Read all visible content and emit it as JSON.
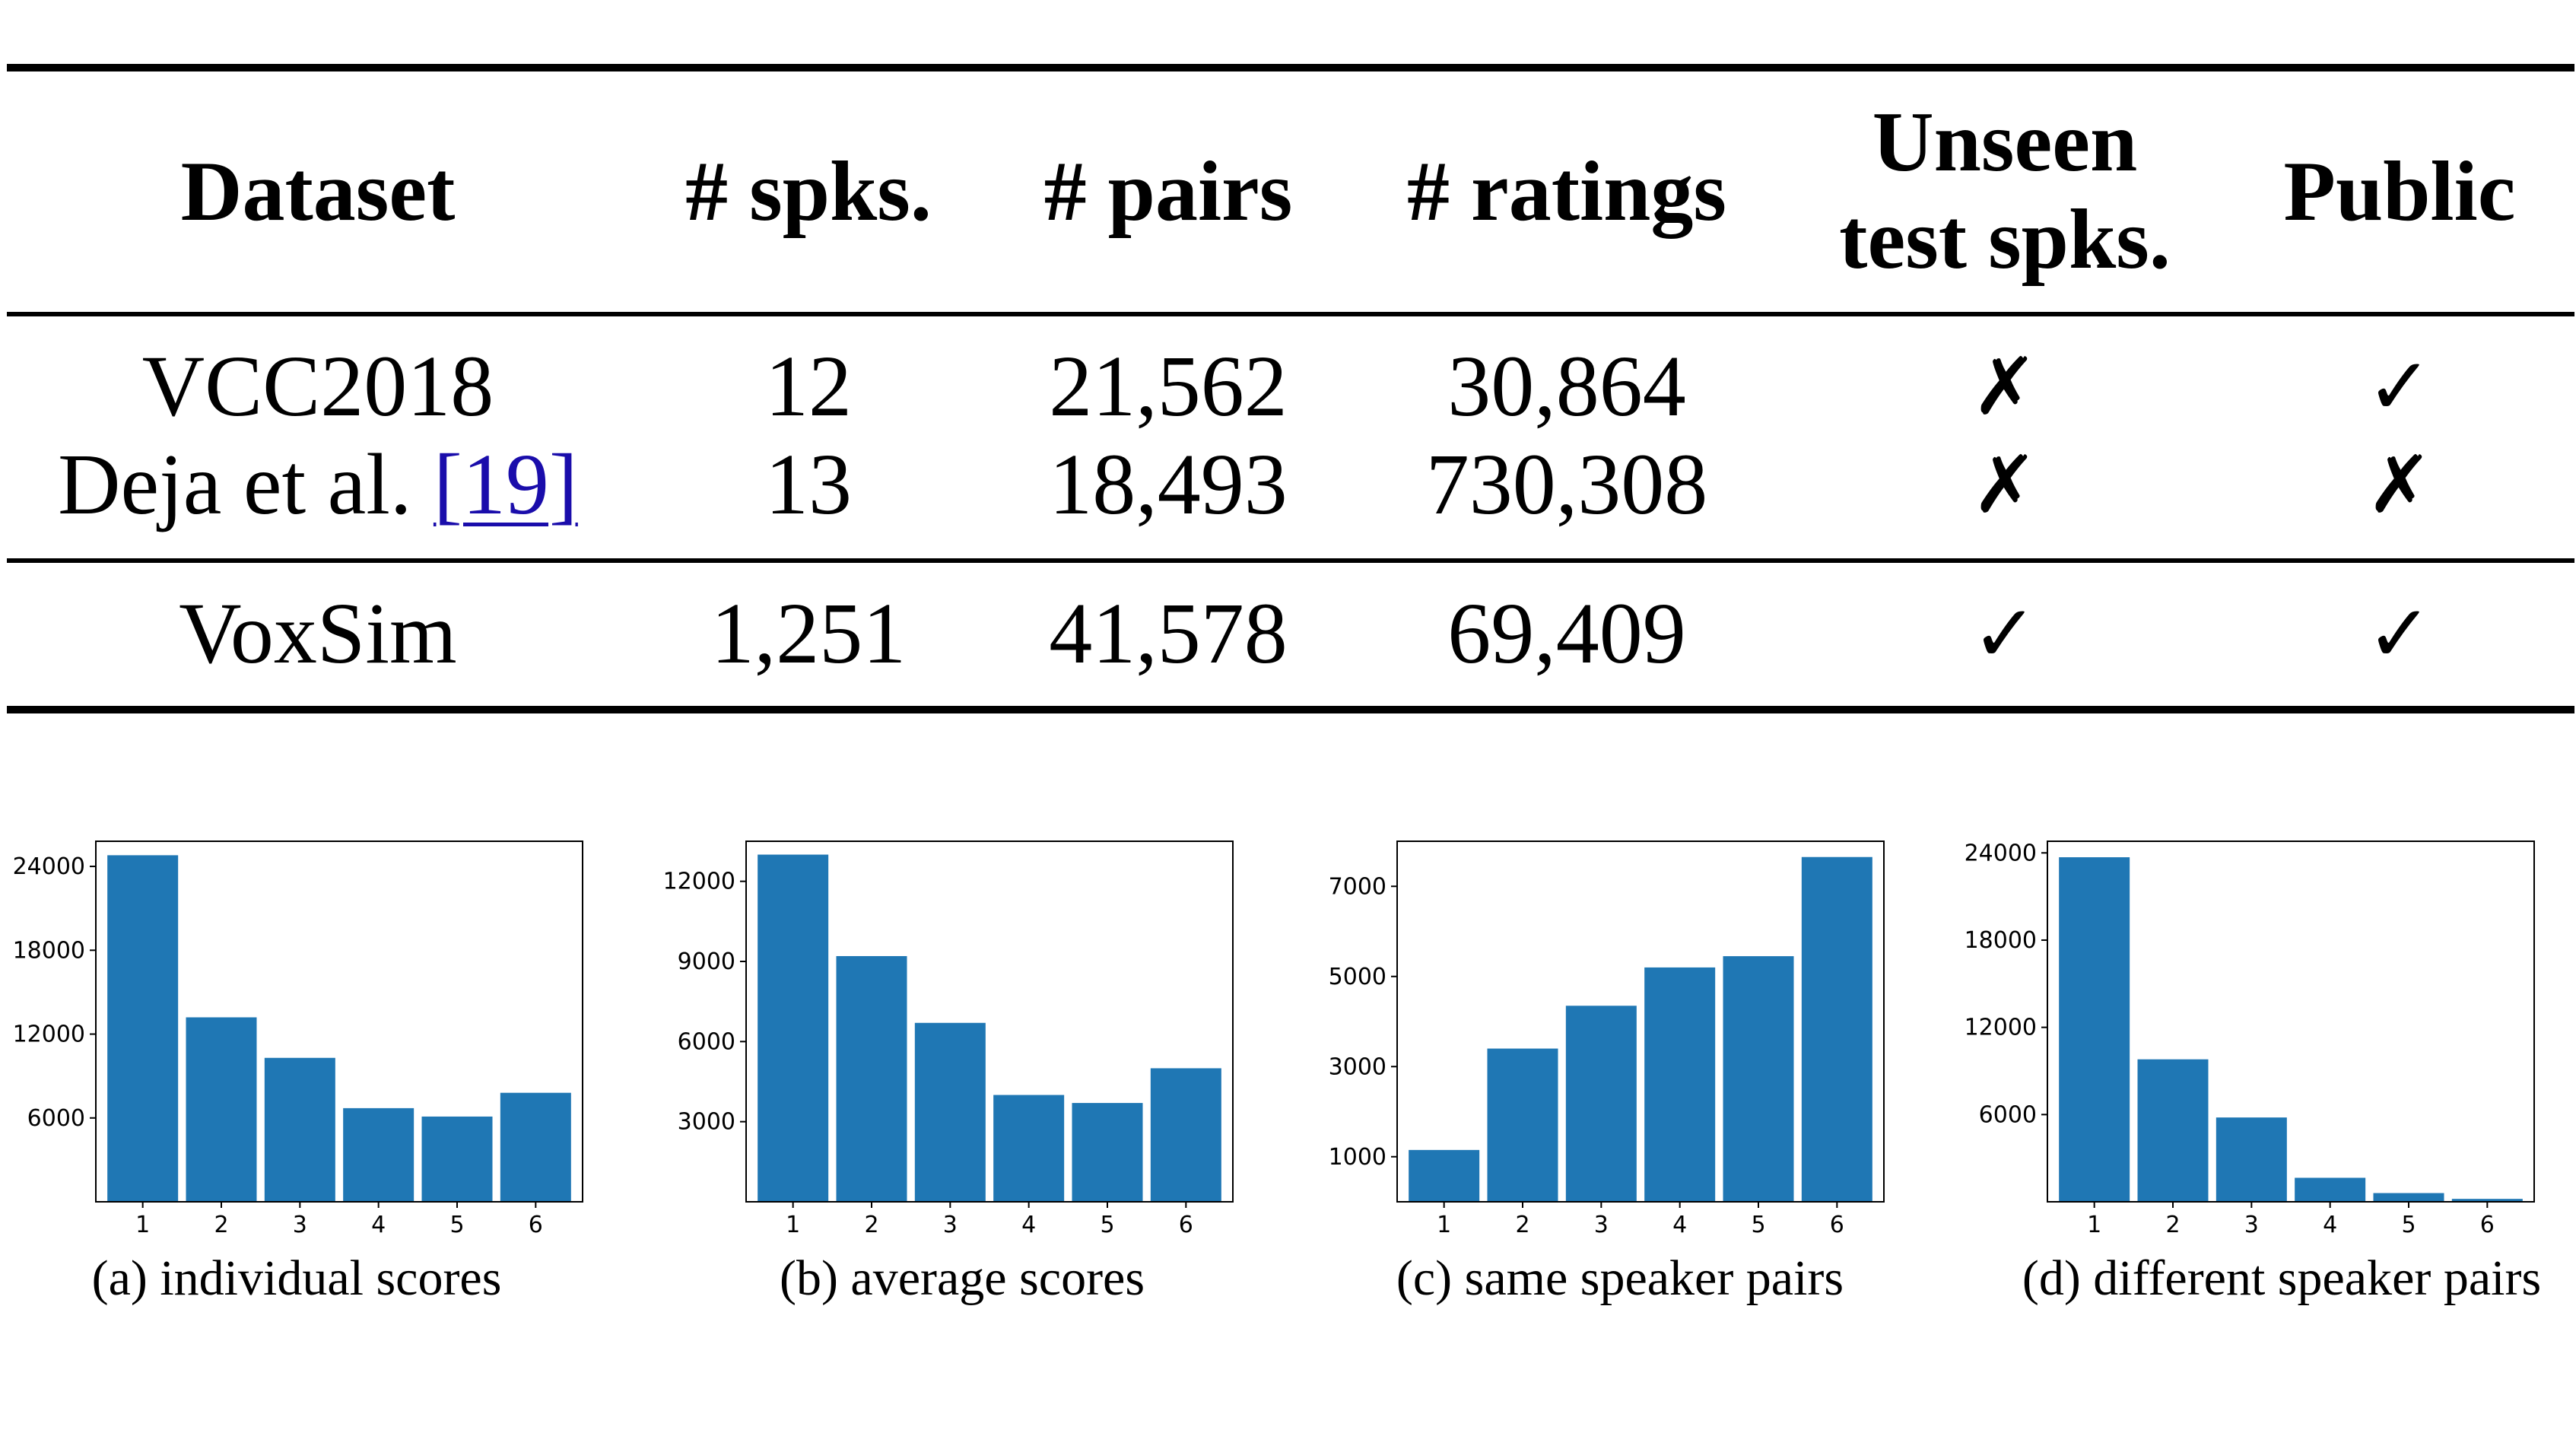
{
  "table": {
    "headers": {
      "dataset": "Dataset",
      "spks": "# spks.",
      "pairs": "# pairs",
      "ratings": "# ratings",
      "unseen_line1": "Unseen",
      "unseen_line2": "test spks.",
      "public": "Public"
    },
    "rows": [
      {
        "dataset": "VCC2018",
        "citation": "",
        "spks": "12",
        "pairs": "21,562",
        "ratings": "30,864",
        "unseen": "✗",
        "public": "✓"
      },
      {
        "dataset": "Deja et al. ",
        "citation": "[19]",
        "spks": "13",
        "pairs": "18,493",
        "ratings": "730,308",
        "unseen": "✗",
        "public": "✗"
      },
      {
        "dataset": "VoxSim",
        "citation": "",
        "spks": "1,251",
        "pairs": "41,578",
        "ratings": "69,409",
        "unseen": "✓",
        "public": "✓"
      }
    ]
  },
  "chart_data": [
    {
      "type": "bar",
      "caption": "(a) individual scores",
      "categories": [
        "1",
        "2",
        "3",
        "4",
        "5",
        "6"
      ],
      "values": [
        24800,
        13200,
        10300,
        6700,
        6100,
        7800
      ],
      "yticks": [
        6000,
        12000,
        18000,
        24000
      ],
      "ylim": [
        0,
        25800
      ],
      "bar_color": "#1f77b4"
    },
    {
      "type": "bar",
      "caption": "(b) average scores",
      "categories": [
        "1",
        "2",
        "3",
        "4",
        "5",
        "6"
      ],
      "values": [
        13000,
        9200,
        6700,
        4000,
        3700,
        5000
      ],
      "yticks": [
        3000,
        6000,
        9000,
        12000
      ],
      "ylim": [
        0,
        13500
      ],
      "bar_color": "#1f77b4"
    },
    {
      "type": "bar",
      "caption": "(c) same speaker pairs",
      "categories": [
        "1",
        "2",
        "3",
        "4",
        "5",
        "6"
      ],
      "values": [
        1150,
        3400,
        4350,
        5200,
        5450,
        7650
      ],
      "yticks": [
        1000,
        3000,
        5000,
        7000
      ],
      "ylim": [
        0,
        8000
      ],
      "bar_color": "#1f77b4"
    },
    {
      "type": "bar",
      "caption": "(d) different speaker pairs",
      "categories": [
        "1",
        "2",
        "3",
        "4",
        "5",
        "6"
      ],
      "values": [
        23700,
        9800,
        5800,
        1650,
        600,
        200
      ],
      "yticks": [
        6000,
        12000,
        18000,
        24000
      ],
      "ylim": [
        0,
        24800
      ],
      "bar_color": "#1f77b4"
    }
  ]
}
